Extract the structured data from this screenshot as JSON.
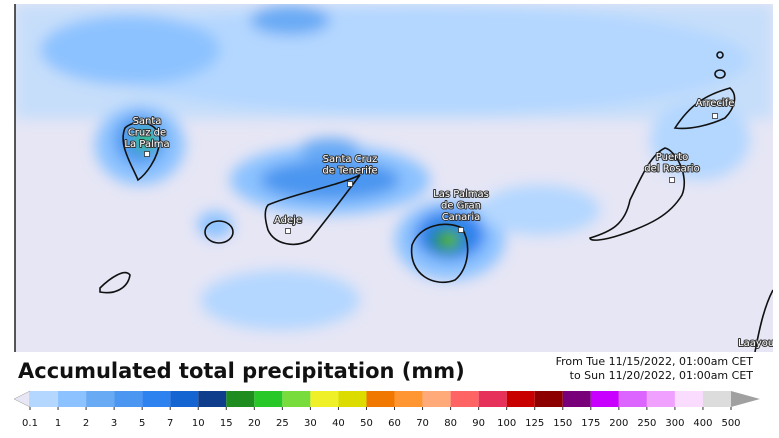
{
  "map": {
    "cities": [
      {
        "lines": [
          "Santa",
          "Cruz de",
          "La Palma"
        ]
      },
      {
        "lines": [
          "Santa Cruz",
          "de Tenerife"
        ]
      },
      {
        "lines": [
          "Adeje"
        ]
      },
      {
        "lines": [
          "Las Palmas",
          "de Gran",
          "Canaria"
        ]
      },
      {
        "lines": [
          "Puerto",
          "del Rosario"
        ]
      },
      {
        "lines": [
          "Arrecife"
        ]
      },
      {
        "lines": [
          "Laayou"
        ]
      }
    ]
  },
  "legend": {
    "title": "Accumulated total precipitation (mm)",
    "period": [
      "From Tue 11/15/2022, 01:00am CET",
      "to Sun 11/20/2022, 01:00am CET"
    ],
    "ticks": [
      0.1,
      1,
      2,
      3,
      5,
      7,
      10,
      15,
      20,
      25,
      30,
      40,
      50,
      60,
      70,
      80,
      90,
      100,
      125,
      150,
      175,
      200,
      250,
      300,
      400,
      500
    ],
    "colors": [
      "#b4d7ff",
      "#8cc2ff",
      "#69aaf5",
      "#4b96f0",
      "#2d82f0",
      "#1464d2",
      "#103c8c",
      "#1e8c1e",
      "#28c828",
      "#78dc3c",
      "#f0f028",
      "#dcdc00",
      "#f07800",
      "#ff9632",
      "#ffaa78",
      "#ff6464",
      "#e6325a",
      "#c80000",
      "#8c0000",
      "#780078",
      "#c800ff",
      "#dc64ff",
      "#f0a0ff",
      "#fadcff",
      "#dcdcdc"
    ],
    "under_color": "#e6e6f5",
    "over_color": "#a0a0a0"
  }
}
